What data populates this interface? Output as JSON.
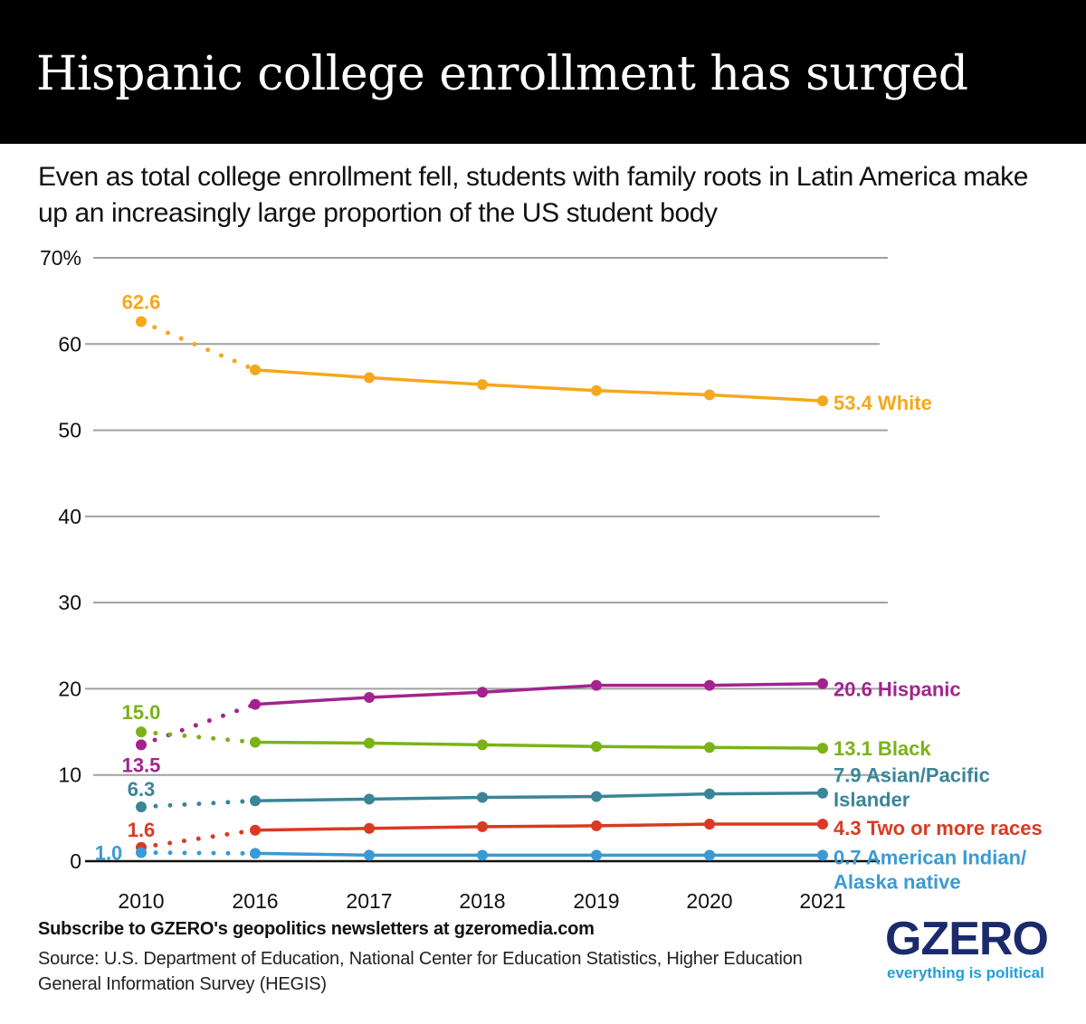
{
  "header": {
    "title": "Hispanic college enrollment has surged",
    "subtitle": "Even as total college enrollment fell, students with family roots in Latin America make up an increasingly large proportion of the US student body"
  },
  "footer": {
    "cta": "Subscribe to GZERO's geopolitics newsletters at gzeromedia.com",
    "source": "Source: U.S. Department of Education, National Center for Education Statistics, Higher Education General Information Survey (HEGIS)"
  },
  "logo": {
    "name": "GZERO",
    "tagline": "everything is political"
  },
  "chart_data": {
    "type": "line",
    "title": "Hispanic college enrollment has surged",
    "xlabel": "",
    "ylabel": "",
    "x": [
      "2010",
      "2016",
      "2017",
      "2018",
      "2019",
      "2020",
      "2021"
    ],
    "ylim": [
      0,
      70
    ],
    "yticks": [
      0,
      10,
      20,
      30,
      40,
      50,
      60,
      70
    ],
    "ytick_labels": [
      "0",
      "10",
      "20",
      "30",
      "40",
      "50",
      "60",
      "70%"
    ],
    "grid": true,
    "legend": "direct labels at right end of each line",
    "note": "2010 to 2016 segment drawn dotted (gap in years)",
    "series": [
      {
        "name": "White",
        "color": "#f5a81c",
        "values": [
          62.6,
          57.0,
          56.1,
          55.3,
          54.6,
          54.1,
          53.4
        ],
        "start_label": "62.6",
        "end_label": "53.4 White"
      },
      {
        "name": "Hispanic",
        "color": "#a3238e",
        "values": [
          13.5,
          18.2,
          19.0,
          19.6,
          20.4,
          20.4,
          20.6
        ],
        "start_label": "13.5",
        "end_label": "20.6 Hispanic"
      },
      {
        "name": "Black",
        "color": "#7ab317",
        "values": [
          15.0,
          13.8,
          13.7,
          13.5,
          13.3,
          13.2,
          13.1
        ],
        "start_label": "15.0",
        "end_label": "13.1 Black"
      },
      {
        "name": "Asian/Pacific Islander",
        "color": "#3b8597",
        "values": [
          6.3,
          7.0,
          7.2,
          7.4,
          7.5,
          7.8,
          7.9
        ],
        "start_label": "6.3",
        "end_label": [
          "7.9 Asian/Pacific",
          "Islander"
        ]
      },
      {
        "name": "Two or more races",
        "color": "#d93a22",
        "values": [
          1.6,
          3.6,
          3.8,
          4.0,
          4.1,
          4.3,
          4.3
        ],
        "start_label": "1.6",
        "end_label": "4.3 Two or more races"
      },
      {
        "name": "American Indian/Alaska native",
        "color": "#3a9ad5",
        "values": [
          1.0,
          0.9,
          0.7,
          0.7,
          0.7,
          0.7,
          0.7
        ],
        "start_label": "1.0",
        "end_label": [
          "0.7 American Indian/",
          "Alaska native"
        ]
      }
    ]
  }
}
